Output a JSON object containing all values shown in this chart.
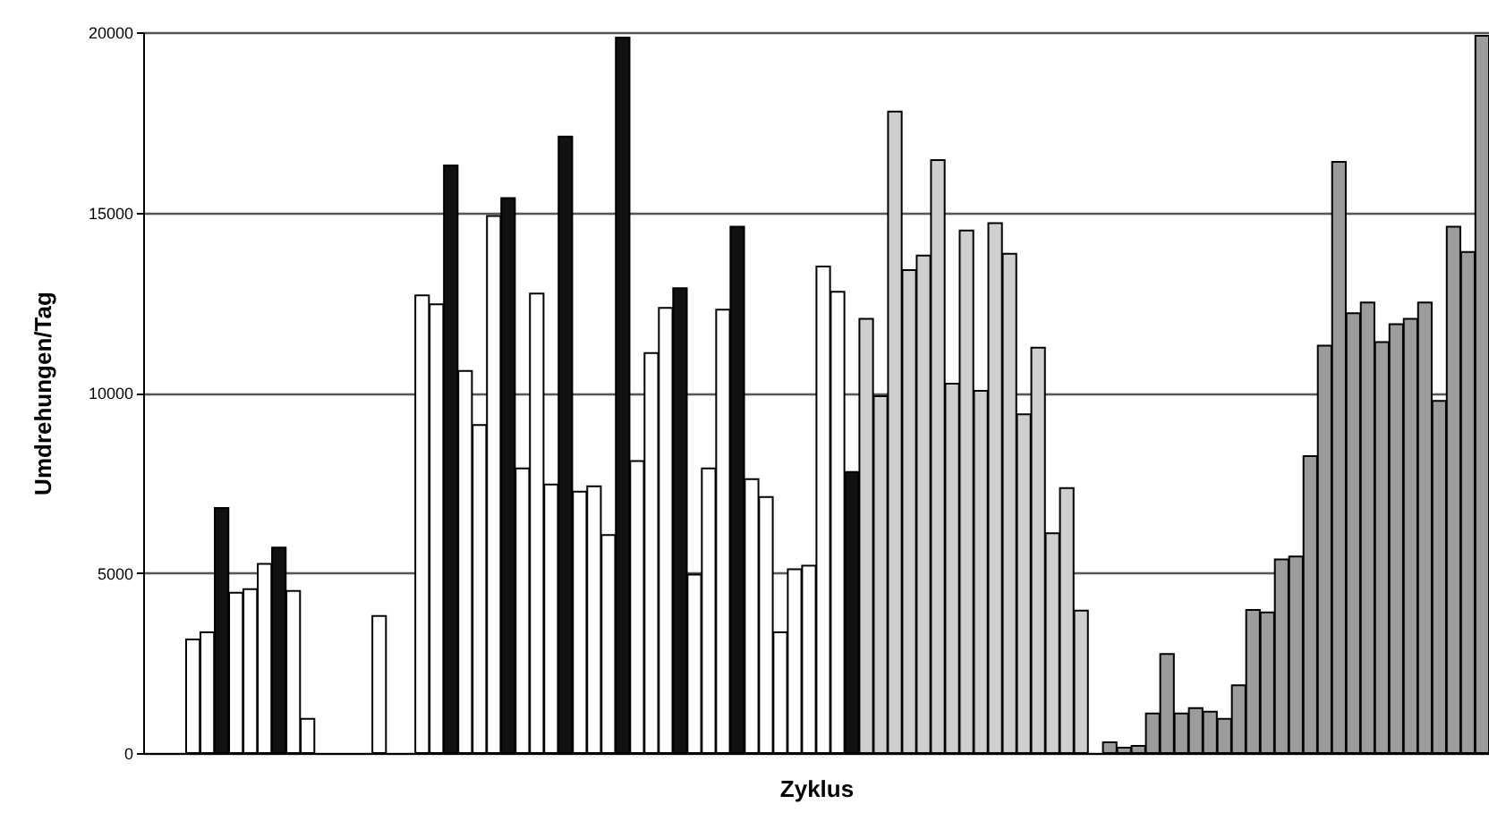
{
  "chart_data": {
    "type": "bar",
    "xlabel": "Zyklus",
    "ylabel": "Umdrehungen/Tag",
    "categories": [
      null,
      null,
      null,
      null,
      null,
      null,
      null,
      null,
      null,
      null,
      null,
      null,
      null,
      null,
      null,
      null,
      null,
      null,
      null,
      null,
      null,
      null,
      null,
      null,
      null,
      null,
      null,
      null,
      null,
      null,
      null,
      null,
      null,
      null,
      null,
      null,
      null,
      null,
      null,
      null,
      null,
      null,
      null,
      null,
      null,
      null,
      null,
      null,
      null,
      null,
      null,
      null,
      null,
      null,
      null,
      null,
      null,
      null,
      null,
      null,
      null,
      null,
      null,
      null,
      null,
      null,
      null,
      null,
      null,
      null,
      null,
      null,
      null,
      null,
      null,
      null,
      null,
      null,
      null,
      null,
      null,
      null,
      null,
      null,
      null,
      null,
      null,
      null,
      null,
      null,
      null,
      null,
      null,
      null
    ],
    "values": [
      null,
      null,
      null,
      3150,
      3350,
      6800,
      4450,
      4550,
      5250,
      5700,
      4500,
      950,
      null,
      null,
      null,
      null,
      3800,
      null,
      null,
      12700,
      12450,
      16300,
      10600,
      9100,
      14900,
      15400,
      7900,
      12750,
      7450,
      17100,
      7250,
      7400,
      6050,
      19850,
      8100,
      11100,
      12350,
      12900,
      4950,
      7900,
      12300,
      14600,
      7600,
      7100,
      3350,
      5100,
      5200,
      13500,
      12800,
      7800,
      12050,
      9900,
      17800,
      13400,
      13800,
      16450,
      10250,
      14500,
      10050,
      14700,
      13850,
      9400,
      11250,
      6100,
      7350,
      3950,
      null,
      300,
      150,
      200,
      1100,
      2750,
      1100,
      1250,
      1150,
      950,
      1880,
      3970,
      3900,
      5370,
      5450,
      8240,
      11300,
      16400,
      12200,
      12500,
      11400,
      11900,
      12050,
      12500,
      9770,
      14600,
      13900,
      19900
    ],
    "colors": [
      "#ffffff",
      "#ffffff",
      "#ffffff",
      "#ffffff",
      "#ffffff",
      "#111111",
      "#ffffff",
      "#ffffff",
      "#ffffff",
      "#111111",
      "#ffffff",
      "#ffffff",
      "#ffffff",
      "#ffffff",
      "#ffffff",
      "#ffffff",
      "#ffffff",
      "#ffffff",
      "#ffffff",
      "#ffffff",
      "#ffffff",
      "#111111",
      "#ffffff",
      "#ffffff",
      "#ffffff",
      "#111111",
      "#ffffff",
      "#ffffff",
      "#ffffff",
      "#111111",
      "#ffffff",
      "#ffffff",
      "#ffffff",
      "#111111",
      "#ffffff",
      "#ffffff",
      "#ffffff",
      "#111111",
      "#ffffff",
      "#ffffff",
      "#ffffff",
      "#111111",
      "#ffffff",
      "#ffffff",
      "#ffffff",
      "#ffffff",
      "#ffffff",
      "#ffffff",
      "#ffffff",
      "#111111",
      "#cfcfcf",
      "#cfcfcf",
      "#cfcfcf",
      "#cfcfcf",
      "#cfcfcf",
      "#cfcfcf",
      "#cfcfcf",
      "#cfcfcf",
      "#cfcfcf",
      "#cfcfcf",
      "#cfcfcf",
      "#cfcfcf",
      "#cfcfcf",
      "#cfcfcf",
      "#cfcfcf",
      "#cfcfcf",
      "#ffffff",
      "#9c9c9c",
      "#9c9c9c",
      "#9c9c9c",
      "#9c9c9c",
      "#9c9c9c",
      "#9c9c9c",
      "#9c9c9c",
      "#9c9c9c",
      "#9c9c9c",
      "#9c9c9c",
      "#9c9c9c",
      "#9c9c9c",
      "#9c9c9c",
      "#9c9c9c",
      "#9c9c9c",
      "#9c9c9c",
      "#9c9c9c",
      "#9c9c9c",
      "#9c9c9c",
      "#9c9c9c",
      "#9c9c9c",
      "#9c9c9c",
      "#9c9c9c",
      "#9c9c9c",
      "#9c9c9c",
      "#9c9c9c",
      "#9c9c9c"
    ],
    "ylim": [
      0,
      20000
    ],
    "yticks": [
      0,
      5000,
      10000,
      15000,
      20000
    ],
    "grid": "y",
    "tick_labels": "y"
  }
}
